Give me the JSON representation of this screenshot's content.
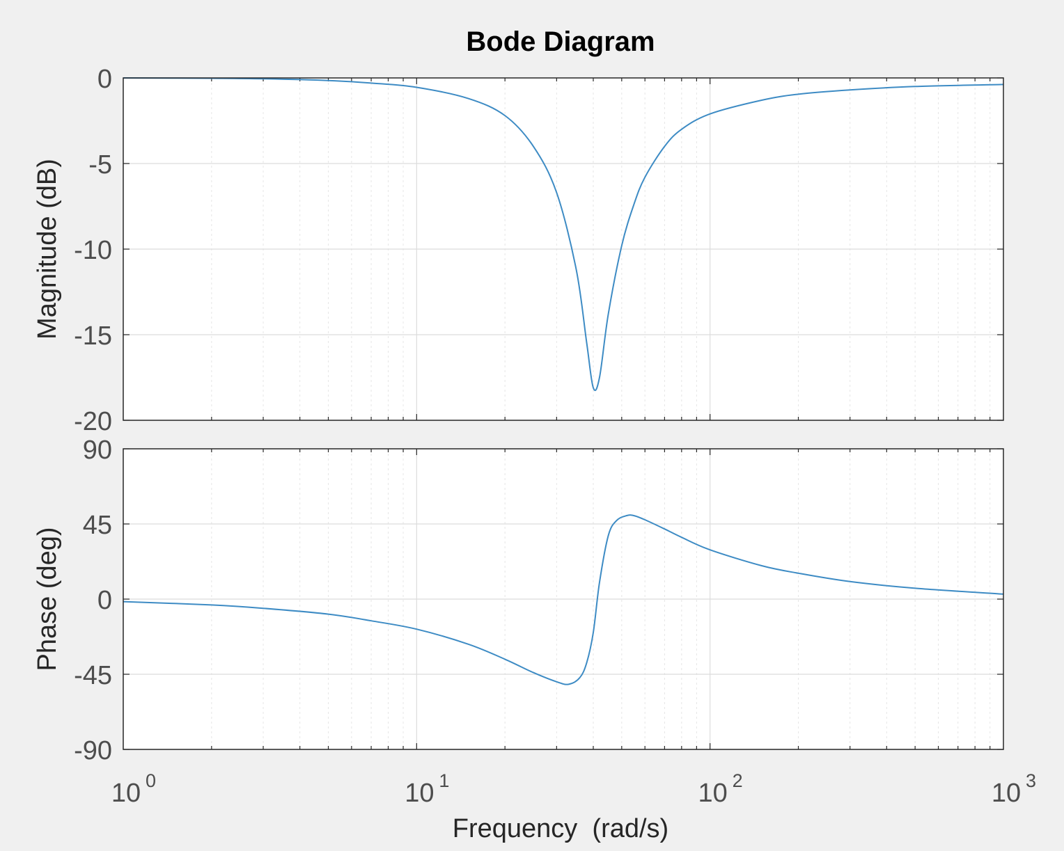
{
  "chart_data": {
    "type": "line",
    "title": "Bode Diagram",
    "xlabel": "Frequency  (rad/s)",
    "xscale": "log",
    "xlim": [
      1,
      1000
    ],
    "xticks": [
      {
        "value": 1,
        "base": "10",
        "exp": "0"
      },
      {
        "value": 10,
        "base": "10",
        "exp": "1"
      },
      {
        "value": 100,
        "base": "10",
        "exp": "2"
      },
      {
        "value": 1000,
        "base": "10",
        "exp": "3"
      }
    ],
    "grid": true,
    "color": "#3d8bc4",
    "panels": [
      {
        "id": "magnitude",
        "ylabel": "Magnitude (dB)",
        "ylim": [
          -20,
          0
        ],
        "yticks": [
          0,
          -5,
          -10,
          -15,
          -20
        ],
        "ytick_labels": [
          "0",
          "-5",
          "-10",
          "-15",
          "-20"
        ],
        "series": [
          {
            "x": [
              1,
              2,
              3,
              5,
              7,
              10,
              15,
              20,
              25,
              30,
              35,
              38,
              40,
              42,
              45,
              50,
              55,
              60,
              70,
              80,
              100,
              150,
              200,
              300,
              500,
              1000
            ],
            "y": [
              0,
              -0.02,
              -0.05,
              -0.15,
              -0.3,
              -0.55,
              -1.2,
              -2.2,
              -4.0,
              -6.7,
              -11.2,
              -15.5,
              -18.1,
              -17.5,
              -13.8,
              -9.8,
              -7.4,
              -5.8,
              -4.0,
              -3.0,
              -2.1,
              -1.3,
              -0.95,
              -0.7,
              -0.5,
              -0.38
            ]
          }
        ]
      },
      {
        "id": "phase",
        "ylabel": "Phase (deg)",
        "ylim": [
          -90,
          90
        ],
        "yticks": [
          90,
          45,
          0,
          -45,
          -90
        ],
        "ytick_labels": [
          "90",
          "45",
          "0",
          "-45",
          "-90"
        ],
        "series": [
          {
            "x": [
              1,
              2,
              3,
              5,
              7,
              10,
              15,
              20,
              25,
              30,
              33,
              36,
              38,
              40,
              42,
              45,
              48,
              52,
              55,
              60,
              70,
              80,
              100,
              150,
              200,
              300,
              500,
              1000
            ],
            "y": [
              -1.5,
              -3.5,
              -5.5,
              -9,
              -13,
              -18,
              -27,
              -36,
              -44,
              -49.5,
              -51,
              -47,
              -38,
              -20,
              10,
              38,
              47,
              50,
              50,
              47.5,
              42,
              37,
              29.5,
              20,
              15.5,
              10.5,
              6.5,
              3
            ]
          }
        ]
      }
    ]
  }
}
